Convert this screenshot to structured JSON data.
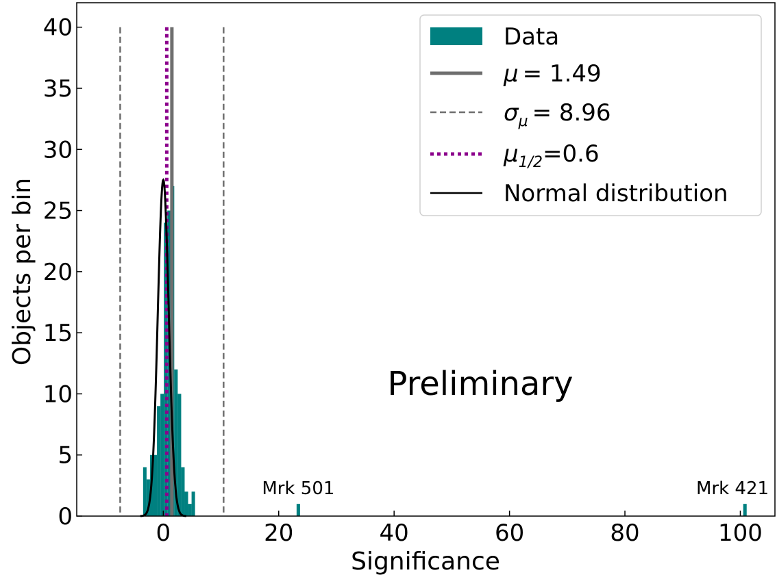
{
  "chart_data": {
    "type": "bar",
    "xlabel": "Significance",
    "ylabel": "Objects per bin",
    "xlim": [
      -15,
      106
    ],
    "ylim": [
      0,
      42
    ],
    "xticks": [
      0,
      20,
      40,
      60,
      80,
      100
    ],
    "yticks": [
      0,
      5,
      10,
      15,
      20,
      25,
      30,
      35,
      40
    ],
    "grid": false,
    "legend_position": "top-right",
    "histogram": {
      "name": "Data",
      "color": "#008080",
      "bin_edges": [
        -3.5,
        -2.9,
        -2.3,
        -1.7,
        -1.1,
        -0.5,
        0.1,
        0.7,
        1.3,
        1.9,
        2.5,
        3.1,
        3.7,
        4.3,
        4.9,
        5.5
      ],
      "counts": [
        4,
        3,
        5,
        5,
        9,
        10,
        24,
        25,
        27,
        12,
        10,
        4,
        2,
        1,
        2
      ]
    },
    "outliers": [
      {
        "x": 23.4,
        "width": 0.6,
        "count": 1,
        "label": "Mrk 501"
      },
      {
        "x": 100.8,
        "width": 0.6,
        "count": 1,
        "label": "Mrk 421"
      }
    ],
    "mean": {
      "value": 1.49,
      "label_prefix": "μ",
      "label_value": "= 1.49",
      "color": "#6e6e6e"
    },
    "sigma_lines": {
      "values": [
        -7.47,
        10.45
      ],
      "label_base": "σ",
      "label_sub": "μ",
      "label_value": "= 8.96",
      "color": "#6e6e6e"
    },
    "median": {
      "value": 0.6,
      "label_prefix": "μ",
      "label_sub": "1/2",
      "label_value": "=0.6",
      "color": "#8b008b"
    },
    "normal": {
      "mean": 0.0,
      "sd": 0.95,
      "peak": 27.5,
      "label": "Normal distribution",
      "color": "#000000"
    },
    "annotation": "Preliminary"
  }
}
